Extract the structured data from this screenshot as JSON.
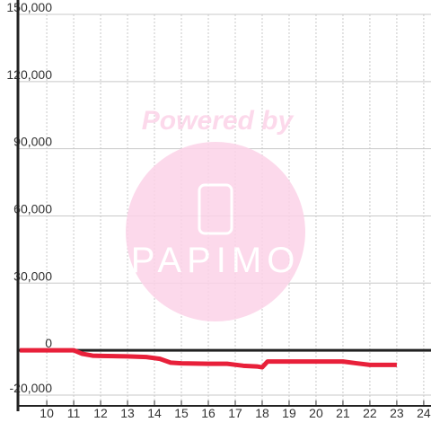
{
  "chart_data": {
    "type": "line",
    "x": [
      9,
      11,
      11.3,
      11.7,
      12,
      13,
      13.7,
      14.2,
      14.6,
      15,
      16,
      16.7,
      17.3,
      17.8,
      18,
      18.2,
      19,
      20,
      21,
      21.5,
      22,
      23
    ],
    "series": [
      {
        "color": "#e8203a",
        "values": [
          0,
          0,
          -1500,
          -2400,
          -2500,
          -2700,
          -3000,
          -3800,
          -5500,
          -5800,
          -6000,
          -6000,
          -6900,
          -7200,
          -7600,
          -5000,
          -5000,
          -5000,
          -5000,
          -5800,
          -6500,
          -6500
        ]
      }
    ],
    "xlim": [
      8.93,
      24.27
    ],
    "xticks": [
      10,
      11,
      12,
      13,
      14,
      15,
      16,
      17,
      18,
      19,
      20,
      21,
      22,
      23,
      24
    ],
    "ylim": [
      -20000,
      150000
    ],
    "yticks": [
      {
        "value": -20000,
        "label": "-20,000"
      },
      0,
      {
        "value": 30000,
        "label": "30,000"
      },
      {
        "value": 60000,
        "label": "60,000"
      },
      {
        "value": 90000,
        "label": "90,000"
      },
      {
        "value": 120000,
        "label": "120,000"
      },
      {
        "value": 150000,
        "label": "150,000"
      }
    ],
    "grid": true,
    "watermark": {
      "line1": "Powered by",
      "line2": "PAPIMO"
    }
  }
}
